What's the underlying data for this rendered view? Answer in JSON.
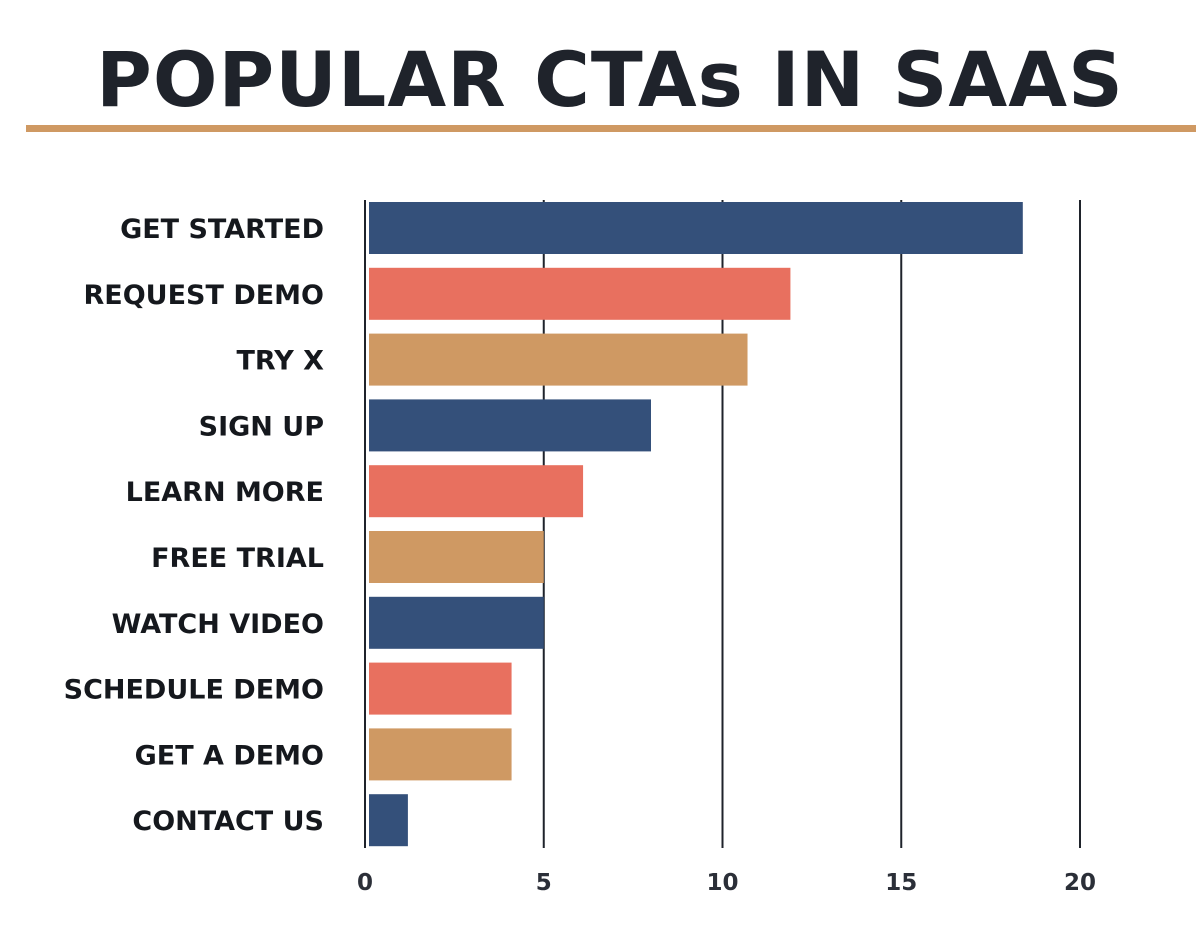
{
  "chart_data": {
    "type": "bar",
    "orientation": "horizontal",
    "title": "POPULAR CTAs IN SAAS",
    "categories": [
      "GET STARTED",
      "REQUEST DEMO",
      "TRY X",
      "SIGN UP",
      "LEARN MORE",
      "FREE TRIAL",
      "WATCH VIDEO",
      "SCHEDULE DEMO",
      "GET A DEMO",
      "CONTACT US"
    ],
    "values": [
      18.4,
      11.9,
      10.7,
      8.0,
      6.1,
      5.0,
      5.0,
      4.1,
      4.1,
      1.2
    ],
    "xlabel": "",
    "ylabel": "",
    "xlim": [
      0,
      20
    ],
    "xticks": [
      0,
      5,
      10,
      15,
      20
    ],
    "grid": "vertical",
    "bar_colors": [
      "#34507a",
      "#e8705f",
      "#cf9963",
      "#34507a",
      "#e8705f",
      "#cf9963",
      "#34507a",
      "#e8705f",
      "#cf9963",
      "#34507a"
    ],
    "accent_color": "#cf9963",
    "gridline_color": "#1f232b"
  }
}
